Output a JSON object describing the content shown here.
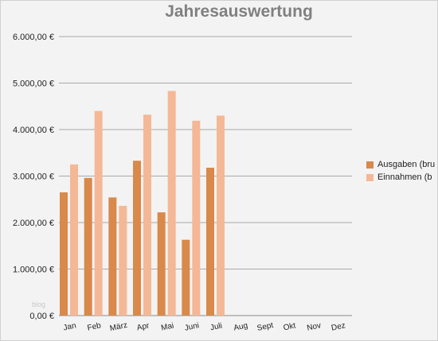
{
  "chart_data": {
    "type": "bar",
    "title": "Jahresauswertung",
    "categories": [
      "Jan",
      "Feb",
      "März",
      "Apr",
      "Mai",
      "Juni",
      "Juli",
      "Aug",
      "Sept",
      "Okt",
      "Nov",
      "Dez"
    ],
    "series": [
      {
        "name": "Ausgaben (bru",
        "color": "#d9894a",
        "values": [
          2650,
          2960,
          2540,
          3330,
          2220,
          1630,
          3180,
          null,
          null,
          null,
          null,
          null
        ]
      },
      {
        "name": "Einnahmen (b",
        "color": "#f4b896",
        "values": [
          3250,
          4400,
          2360,
          4320,
          4830,
          4190,
          4300,
          null,
          null,
          null,
          null,
          null
        ]
      }
    ],
    "y_ticks": [
      0,
      1000,
      2000,
      3000,
      4000,
      5000,
      6000
    ],
    "y_tick_labels": [
      "0,00 €",
      "1.000,00 €",
      "2.000,00 €",
      "3.000,00 €",
      "4.000,00 €",
      "5.000,00 €",
      "6.000,00 €"
    ],
    "ylim": [
      0,
      6000
    ],
    "grid": true,
    "legend_position": "right"
  },
  "watermark": "blog"
}
